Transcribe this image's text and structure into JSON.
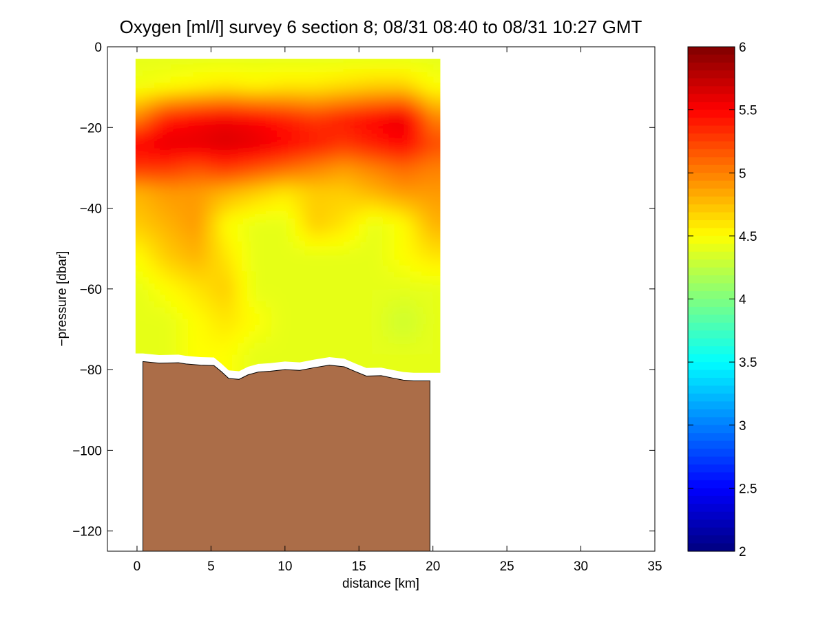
{
  "chart_data": {
    "type": "heatmap",
    "title": "Oxygen [ml/l] survey 6 section 8; 08/31 08:40 to 08/31 10:27 GMT",
    "xlabel": "distance [km]",
    "ylabel": "−pressure [dbar]",
    "xlim": [
      -2,
      35
    ],
    "ylim": [
      -125,
      0
    ],
    "xticks": [
      0,
      5,
      10,
      15,
      20,
      25,
      30,
      35
    ],
    "xtick_labels": [
      "0",
      "5",
      "10",
      "15",
      "20",
      "25",
      "30",
      "35"
    ],
    "yticks": [
      0,
      -20,
      -40,
      -60,
      -80,
      -100,
      -120
    ],
    "ytick_labels": [
      "0",
      "−20",
      "−40",
      "−60",
      "−80",
      "−100",
      "−120"
    ],
    "colorbar": {
      "range": [
        2,
        6
      ],
      "ticks": [
        2,
        2.5,
        3,
        3.5,
        4,
        4.5,
        5,
        5.5,
        6
      ],
      "tick_labels": [
        "2",
        "2.5",
        "3",
        "3.5",
        "4",
        "4.5",
        "5",
        "5.5",
        "6"
      ],
      "colormap": "jet"
    },
    "oxygen_field": {
      "x": [
        0,
        2,
        4,
        6,
        8,
        10,
        12,
        14,
        16,
        18,
        20
      ],
      "y": [
        -3,
        -10,
        -18,
        -24,
        -30,
        -36,
        -44,
        -52,
        -60,
        -68,
        -76
      ],
      "z": [
        [
          4.4,
          4.4,
          4.4,
          4.4,
          4.4,
          4.4,
          4.4,
          4.4,
          4.4,
          4.4,
          4.4
        ],
        [
          4.45,
          4.5,
          4.55,
          4.6,
          4.55,
          4.6,
          4.6,
          4.65,
          4.7,
          4.7,
          4.5
        ],
        [
          5.0,
          5.4,
          5.5,
          5.55,
          5.5,
          5.4,
          5.3,
          5.4,
          5.5,
          5.6,
          5.0
        ],
        [
          5.5,
          5.6,
          5.6,
          5.65,
          5.6,
          5.5,
          5.4,
          5.3,
          5.4,
          5.5,
          5.2
        ],
        [
          5.3,
          5.3,
          5.2,
          5.3,
          5.2,
          5.1,
          5.0,
          4.9,
          5.0,
          5.1,
          5.0
        ],
        [
          4.8,
          4.9,
          4.9,
          4.8,
          4.7,
          4.6,
          4.7,
          4.7,
          4.8,
          4.9,
          4.9
        ],
        [
          4.7,
          4.8,
          4.9,
          4.5,
          4.4,
          4.4,
          4.7,
          4.6,
          4.4,
          4.5,
          4.8
        ],
        [
          4.5,
          4.7,
          4.8,
          4.6,
          4.4,
          4.4,
          4.4,
          4.4,
          4.4,
          4.5,
          4.6
        ],
        [
          4.4,
          4.5,
          4.6,
          4.7,
          4.4,
          4.4,
          4.4,
          4.4,
          4.4,
          4.4,
          4.4
        ],
        [
          4.4,
          4.4,
          4.5,
          4.6,
          4.5,
          4.4,
          4.4,
          4.4,
          4.4,
          4.3,
          4.4
        ],
        [
          4.4,
          4.4,
          4.5,
          4.5,
          4.4,
          4.4,
          4.4,
          4.4,
          4.4,
          4.4,
          4.4
        ]
      ]
    },
    "data_extent_km": {
      "xmin": -0.1,
      "xmax": 20.5,
      "ytop": -3
    },
    "seabed": {
      "color": "#ab6d48",
      "x_start": 0.4,
      "x_end": 19.8,
      "depth": [
        [
          0.4,
          -78.0
        ],
        [
          1.5,
          -78.4
        ],
        [
          2.8,
          -78.3
        ],
        [
          3.3,
          -78.6
        ],
        [
          4.3,
          -78.9
        ],
        [
          5.2,
          -79.0
        ],
        [
          5.7,
          -80.5
        ],
        [
          6.2,
          -82.2
        ],
        [
          6.9,
          -82.4
        ],
        [
          7.5,
          -81.3
        ],
        [
          8.2,
          -80.6
        ],
        [
          9.0,
          -80.4
        ],
        [
          10.0,
          -80.0
        ],
        [
          11.0,
          -80.2
        ],
        [
          12.0,
          -79.5
        ],
        [
          13.0,
          -78.9
        ],
        [
          14.0,
          -79.3
        ],
        [
          14.7,
          -80.4
        ],
        [
          15.5,
          -81.6
        ],
        [
          16.5,
          -81.5
        ],
        [
          17.3,
          -82.1
        ],
        [
          18.0,
          -82.6
        ],
        [
          18.7,
          -82.8
        ],
        [
          19.8,
          -82.8
        ]
      ]
    }
  }
}
